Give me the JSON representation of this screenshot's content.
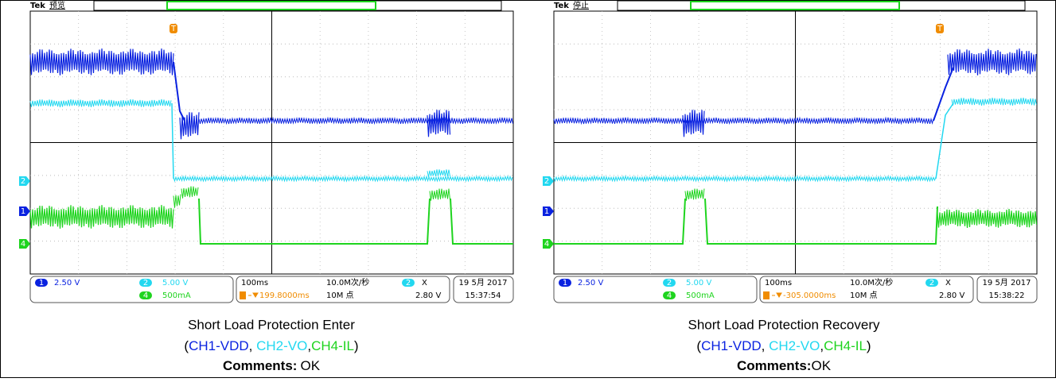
{
  "panels": [
    {
      "scope": {
        "brand": "Tek",
        "status": "预览",
        "trigger_marker": "T",
        "markers": [
          "2",
          "1",
          "4"
        ],
        "ch1_badge": "1",
        "ch1_scale": "2.50 V",
        "ch2_badge": "2",
        "ch2_scale": "5.00 V",
        "ch4_badge": "4",
        "ch4_scale": "500mA",
        "timebase": "100ms",
        "sample_rate": "10.0M次/秒",
        "trigger_delay": "199.8000ms",
        "record_length": "10M 点",
        "trig_badge": "2",
        "trig_coupling": "X",
        "trig_level": "2.80 V",
        "date": "19 5月 2017",
        "time": "15:37:54"
      },
      "caption": {
        "title": "Short Load Protection Enter",
        "open": "(",
        "ch1": "CH1-VDD",
        "sep1": ", ",
        "ch2": "CH2-VO",
        "sep2": ",",
        "ch4": "CH4-IL",
        "close": ")",
        "comments_label": "Comments:",
        "comments_value": "OK"
      }
    },
    {
      "scope": {
        "brand": "Tek",
        "status": "停止",
        "trigger_marker": "T",
        "markers": [
          "2",
          "1",
          "4"
        ],
        "ch1_badge": "1",
        "ch1_scale": "2.50 V",
        "ch2_badge": "2",
        "ch2_scale": "5.00 V",
        "ch4_badge": "4",
        "ch4_scale": "500mA",
        "timebase": "100ms",
        "sample_rate": "10.0M次/秒",
        "trigger_delay": "-305.0000ms",
        "record_length": "10M 点",
        "trig_badge": "2",
        "trig_coupling": "X",
        "trig_level": "2.80 V",
        "date": "19 5月 2017",
        "time": "15:38:22"
      },
      "caption": {
        "title": "Short Load Protection Recovery",
        "open": "(",
        "ch1": "CH1-VDD",
        "sep1": ", ",
        "ch2": "CH2-VO",
        "sep2": ",",
        "ch4": "CH4-IL",
        "close": ")",
        "comments_label": "Comments:",
        "comments_value": "OK"
      }
    }
  ]
}
